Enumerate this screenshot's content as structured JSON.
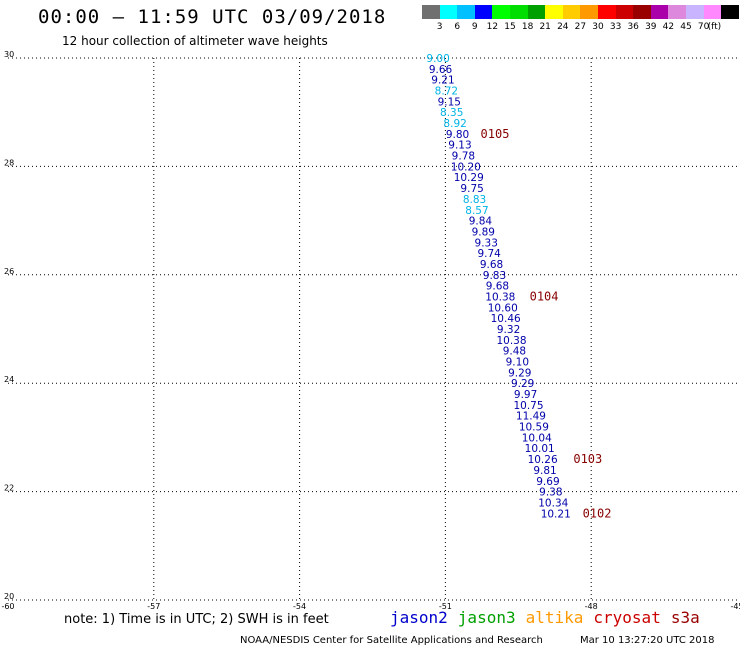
{
  "header": {
    "title": "00:00 – 11:59 UTC 03/09/2018",
    "subtitle": "12 hour collection of altimeter wave heights"
  },
  "colorbar": {
    "unit": "(ft)",
    "colors": [
      "#707070",
      "#00ffff",
      "#00c0ff",
      "#0000ff",
      "#00ff00",
      "#00dd00",
      "#00a000",
      "#ffff00",
      "#ffcc00",
      "#ff9900",
      "#ff0000",
      "#cc0000",
      "#990000",
      "#aa00aa",
      "#dd88dd",
      "#c8b4ff",
      "#ff88ff",
      "#000000"
    ],
    "labels": [
      "3",
      "6",
      "9",
      "12",
      "15",
      "18",
      "21",
      "24",
      "27",
      "30",
      "33",
      "36",
      "39",
      "42",
      "45",
      "70"
    ]
  },
  "footer": {
    "note": "note: 1) Time is in UTC; 2) SWH is in feet",
    "credit": "NOAA/NESDIS Center for Satellite Applications and Research",
    "timestamp": "Mar 10 13:27:20 UTC 2018"
  },
  "legend": [
    {
      "name": "jason2",
      "color": "#0000cc"
    },
    {
      "name": "jason3",
      "color": "#00a000"
    },
    {
      "name": "altika",
      "color": "#ff9900"
    },
    {
      "name": "cryosat",
      "color": "#cc0000"
    },
    {
      "name": "s3a",
      "color": "#990000"
    }
  ],
  "chart_data": {
    "type": "scatter",
    "title": "00:00 – 11:59 UTC 03/09/2018",
    "subtitle": "12 hour collection of altimeter wave heights",
    "xlim": [
      -60,
      -45
    ],
    "ylim": [
      20,
      30
    ],
    "x_ticks": [
      -60,
      -57,
      -54,
      -51,
      -48,
      -45
    ],
    "x_tick_labels": [
      "-60",
      "-57",
      "-54",
      "-51",
      "-48",
      "-45"
    ],
    "y_ticks": [
      20,
      22,
      24,
      26,
      28,
      30
    ],
    "y_tick_labels": [
      "20",
      "22",
      "24",
      "26",
      "28",
      "30"
    ],
    "grid": true,
    "series": [
      {
        "name": "jason2",
        "points": [
          {
            "lon": -51.15,
            "lat": 30.0,
            "swh": "9.00",
            "color": "#00b4e6"
          },
          {
            "lon": -51.1,
            "lat": 29.8,
            "swh": "9.66",
            "color": "#0000aa"
          },
          {
            "lon": -51.05,
            "lat": 29.6,
            "swh": "9.21",
            "color": "#0000aa"
          },
          {
            "lon": -50.98,
            "lat": 29.4,
            "swh": "8.72",
            "color": "#00b4e6"
          },
          {
            "lon": -50.92,
            "lat": 29.2,
            "swh": "9.15",
            "color": "#0000aa"
          },
          {
            "lon": -50.87,
            "lat": 29.0,
            "swh": "8.35",
            "color": "#00b4e6"
          },
          {
            "lon": -50.8,
            "lat": 28.8,
            "swh": "8.92",
            "color": "#00b4e6"
          },
          {
            "lon": -50.75,
            "lat": 28.6,
            "swh": "9.80",
            "color": "#0000aa"
          },
          {
            "lon": -50.7,
            "lat": 28.4,
            "swh": "9.13",
            "color": "#0000aa"
          },
          {
            "lon": -50.63,
            "lat": 28.2,
            "swh": "9.78",
            "color": "#0000aa"
          },
          {
            "lon": -50.58,
            "lat": 28.0,
            "swh": "10.20",
            "color": "#0000aa"
          },
          {
            "lon": -50.52,
            "lat": 27.8,
            "swh": "10.29",
            "color": "#0000aa"
          },
          {
            "lon": -50.45,
            "lat": 27.6,
            "swh": "9.75",
            "color": "#0000aa"
          },
          {
            "lon": -50.4,
            "lat": 27.4,
            "swh": "8.83",
            "color": "#00b4e6"
          },
          {
            "lon": -50.35,
            "lat": 27.2,
            "swh": "8.57",
            "color": "#00b4e6"
          },
          {
            "lon": -50.28,
            "lat": 27.0,
            "swh": "9.84",
            "color": "#0000aa"
          },
          {
            "lon": -50.22,
            "lat": 26.8,
            "swh": "9.89",
            "color": "#0000aa"
          },
          {
            "lon": -50.16,
            "lat": 26.6,
            "swh": "9.33",
            "color": "#0000aa"
          },
          {
            "lon": -50.1,
            "lat": 26.4,
            "swh": "9.74",
            "color": "#0000aa"
          },
          {
            "lon": -50.05,
            "lat": 26.2,
            "swh": "9.68",
            "color": "#0000aa"
          },
          {
            "lon": -49.99,
            "lat": 26.0,
            "swh": "9.83",
            "color": "#0000aa"
          },
          {
            "lon": -49.93,
            "lat": 25.8,
            "swh": "9.68",
            "color": "#0000aa"
          },
          {
            "lon": -49.87,
            "lat": 25.6,
            "swh": "10.38",
            "color": "#0000aa"
          },
          {
            "lon": -49.82,
            "lat": 25.4,
            "swh": "10.60",
            "color": "#0000aa"
          },
          {
            "lon": -49.76,
            "lat": 25.2,
            "swh": "10.46",
            "color": "#0000aa"
          },
          {
            "lon": -49.7,
            "lat": 25.0,
            "swh": "9.32",
            "color": "#0000aa"
          },
          {
            "lon": -49.64,
            "lat": 24.8,
            "swh": "10.38",
            "color": "#0000aa"
          },
          {
            "lon": -49.58,
            "lat": 24.6,
            "swh": "9.48",
            "color": "#0000aa"
          },
          {
            "lon": -49.52,
            "lat": 24.4,
            "swh": "9.10",
            "color": "#0000aa"
          },
          {
            "lon": -49.47,
            "lat": 24.2,
            "swh": "9.29",
            "color": "#0000aa"
          },
          {
            "lon": -49.41,
            "lat": 24.0,
            "swh": "9.29",
            "color": "#0000aa"
          },
          {
            "lon": -49.35,
            "lat": 23.8,
            "swh": "9.97",
            "color": "#0000aa"
          },
          {
            "lon": -49.29,
            "lat": 23.6,
            "swh": "10.75",
            "color": "#0000aa"
          },
          {
            "lon": -49.24,
            "lat": 23.4,
            "swh": "11.49",
            "color": "#0000aa"
          },
          {
            "lon": -49.18,
            "lat": 23.2,
            "swh": "10.59",
            "color": "#0000aa"
          },
          {
            "lon": -49.12,
            "lat": 23.0,
            "swh": "10.04",
            "color": "#0000aa"
          },
          {
            "lon": -49.06,
            "lat": 22.8,
            "swh": "10.01",
            "color": "#0000aa"
          },
          {
            "lon": -49.0,
            "lat": 22.6,
            "swh": "10.26",
            "color": "#0000aa"
          },
          {
            "lon": -48.95,
            "lat": 22.4,
            "swh": "9.81",
            "color": "#0000aa"
          },
          {
            "lon": -48.89,
            "lat": 22.2,
            "swh": "9.69",
            "color": "#0000aa"
          },
          {
            "lon": -48.83,
            "lat": 22.0,
            "swh": "9.38",
            "color": "#0000aa"
          },
          {
            "lon": -48.78,
            "lat": 21.8,
            "swh": "10.34",
            "color": "#0000aa"
          },
          {
            "lon": -48.73,
            "lat": 21.6,
            "swh": "10.21",
            "color": "#0000aa"
          }
        ]
      }
    ],
    "time_annotations": [
      {
        "lon": -49.98,
        "lat": 28.6,
        "label": "0105",
        "color": "#880000"
      },
      {
        "lon": -48.97,
        "lat": 25.6,
        "label": "0104",
        "color": "#880000"
      },
      {
        "lon": -48.07,
        "lat": 22.6,
        "label": "0103",
        "color": "#880000"
      },
      {
        "lon": -47.88,
        "lat": 21.6,
        "label": "0102",
        "color": "#880000"
      }
    ]
  }
}
